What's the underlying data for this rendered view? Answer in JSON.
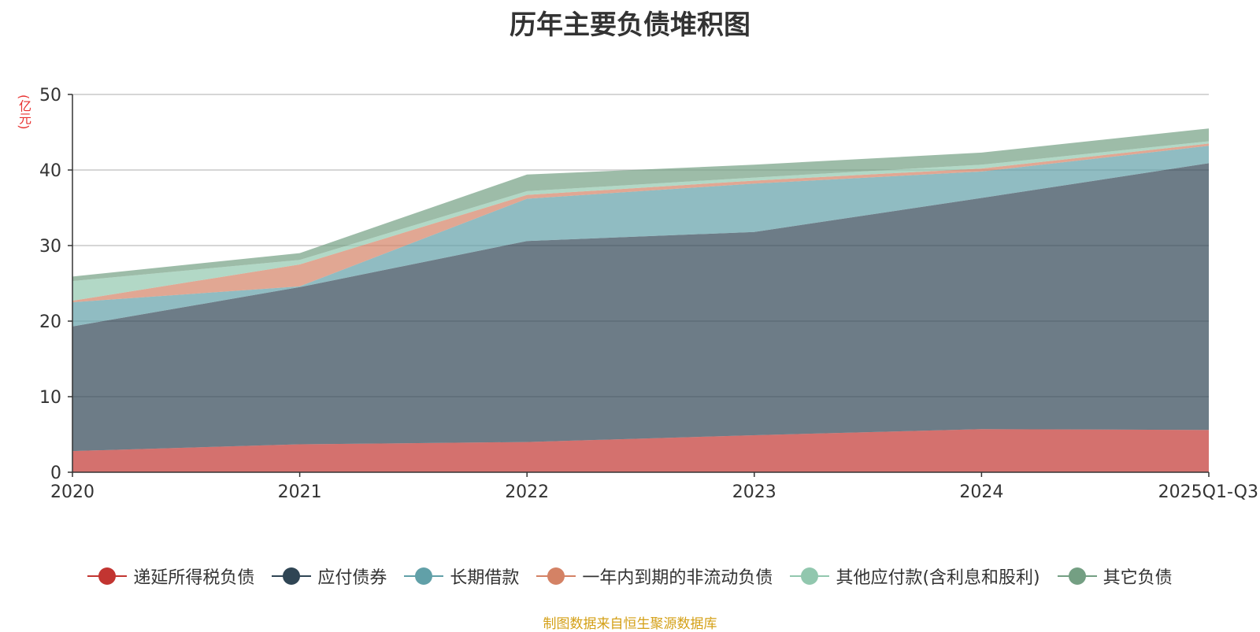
{
  "title": "历年主要负债堆积图",
  "unit": "(亿元)",
  "source": "制图数据来自恒生聚源数据库",
  "chart_data": {
    "type": "area",
    "stacked": true,
    "categories": [
      "2020",
      "2021",
      "2022",
      "2023",
      "2024",
      "2025Q1-Q3"
    ],
    "ylim": [
      0,
      50
    ],
    "yticks": [
      0,
      10,
      20,
      30,
      40,
      50
    ],
    "grid": true,
    "legend_position": "bottom",
    "series": [
      {
        "name": "递延所得税负债",
        "color": "#c23531",
        "values": [
          2.8,
          3.7,
          4.0,
          4.9,
          5.7,
          5.6
        ]
      },
      {
        "name": "应付债券",
        "color": "#2f4554",
        "values": [
          16.5,
          20.8,
          26.6,
          26.9,
          30.6,
          35.3
        ]
      },
      {
        "name": "长期借款",
        "color": "#61a0a8",
        "values": [
          3.2,
          0.1,
          5.6,
          6.4,
          3.5,
          2.3
        ]
      },
      {
        "name": "一年内到期的非流动负债",
        "color": "#d48265",
        "values": [
          0.2,
          2.9,
          0.5,
          0.4,
          0.4,
          0.3
        ]
      },
      {
        "name": "其他应付款(含利息和股利)",
        "color": "#91c7ae",
        "values": [
          2.6,
          0.6,
          0.5,
          0.4,
          0.5,
          0.3
        ]
      },
      {
        "name": "其它负债",
        "color": "#749f83",
        "values": [
          0.6,
          0.9,
          2.2,
          1.7,
          1.6,
          1.7
        ]
      }
    ]
  }
}
